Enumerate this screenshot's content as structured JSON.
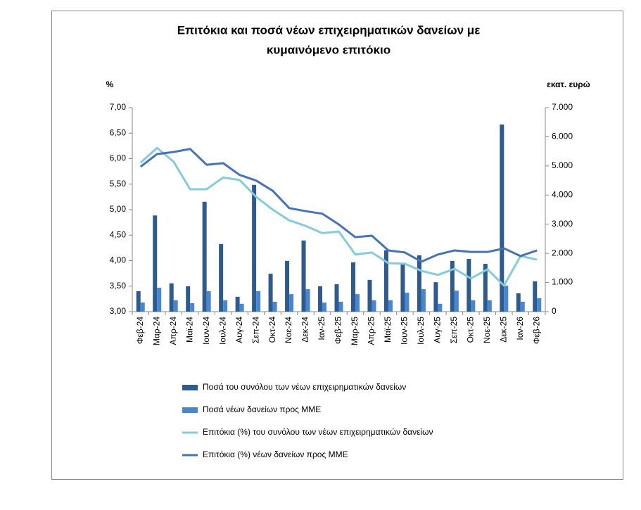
{
  "chart_data": {
    "type": "combo",
    "title": [
      "Επιτόκια και ποσά νέων επιχειρηματικών δανείων με",
      "κυμαινόμενο επιτόκιο"
    ],
    "y_label": "%",
    "y2_label": "εκατ. ευρώ",
    "categories": [
      "Φεβ-24",
      "Μαρ-24",
      "Απρ-24",
      "Μαϊ-24",
      "Ιουν-24",
      "Ιουλ-24",
      "Αυγ-24",
      "Σεπ-24",
      "Οκτ-24",
      "Νοε-24",
      "Δεκ-24",
      "Ιαν-25",
      "Φεβ-25",
      "Μαρ-25",
      "Απρ-25",
      "Μαϊ-25",
      "Ιουν-25",
      "Ιουλ-25",
      "Αυγ-25",
      "Σεπ-25",
      "Οκτ-25",
      "Νοε-25",
      "Δεκ-25",
      "Ιαν-26",
      "Φεβ-26"
    ],
    "ylim": [
      3,
      7
    ],
    "yticks": [
      {
        "value": 3,
        "label": "3,00"
      },
      {
        "value": 3.5,
        "label": "3,50"
      },
      {
        "value": 4,
        "label": "4,00"
      },
      {
        "value": 4.5,
        "label": "4,50"
      },
      {
        "value": 5,
        "label": "5,00"
      },
      {
        "value": 5.5,
        "label": "5,50"
      },
      {
        "value": 6,
        "label": "6,00"
      },
      {
        "value": 6.5,
        "label": "6,50"
      },
      {
        "value": 7,
        "label": "7,00"
      }
    ],
    "y2lim": [
      0,
      7000
    ],
    "y2ticks": [
      0,
      {
        "value": 1000,
        "label": "1.000"
      },
      {
        "value": 2000,
        "label": "2.000"
      },
      {
        "value": 3000,
        "label": "3.000"
      },
      {
        "value": 4000,
        "label": "4.000"
      },
      {
        "value": 5000,
        "label": "5.000"
      },
      {
        "value": 6000,
        "label": "6.000"
      },
      {
        "value": 7000,
        "label": "7.000"
      }
    ],
    "grid": false,
    "series": [
      {
        "name": "Ποσά του συνόλου των νέων επιχειρηματικών δανείων",
        "type": "bar",
        "axis": "y2",
        "color": "#2f5b8c",
        "values": [
          700,
          3300,
          970,
          870,
          3770,
          2320,
          510,
          4350,
          1300,
          1740,
          2440,
          870,
          940,
          1690,
          1090,
          2100,
          1640,
          1930,
          1010,
          1740,
          1810,
          1640,
          6420,
          630,
          1040
        ]
      },
      {
        "name": "Ποσά νέων δανείων προς ΜΜΕ",
        "type": "bar",
        "axis": "y2",
        "color": "#4a86d0",
        "values": [
          310,
          820,
          390,
          290,
          700,
          390,
          270,
          700,
          340,
          600,
          770,
          310,
          340,
          600,
          390,
          390,
          650,
          770,
          270,
          720,
          390,
          390,
          890,
          340,
          460
        ]
      },
      {
        "name": "Επιτόκια (%) του συνόλου των νέων επιχειρηματικών δανείων",
        "type": "line",
        "axis": "y",
        "color": "#86cbdb",
        "values": [
          5.92,
          6.21,
          5.94,
          5.4,
          5.4,
          5.63,
          5.58,
          5.25,
          5.0,
          4.79,
          4.68,
          4.54,
          4.57,
          4.12,
          4.16,
          3.95,
          3.94,
          3.8,
          3.72,
          3.84,
          3.65,
          3.83,
          3.51,
          4.09,
          4.02
        ]
      },
      {
        "name": "Επιτόκια (%) νέων δανείων προς ΜΜΕ",
        "type": "line",
        "axis": "y",
        "color": "#4673b3",
        "values": [
          5.84,
          6.09,
          6.13,
          6.19,
          5.88,
          5.91,
          5.68,
          5.57,
          5.37,
          5.03,
          4.97,
          4.92,
          4.71,
          4.46,
          4.49,
          4.2,
          4.16,
          3.98,
          4.12,
          4.2,
          4.17,
          4.17,
          4.24,
          4.09,
          4.2
        ]
      }
    ]
  }
}
